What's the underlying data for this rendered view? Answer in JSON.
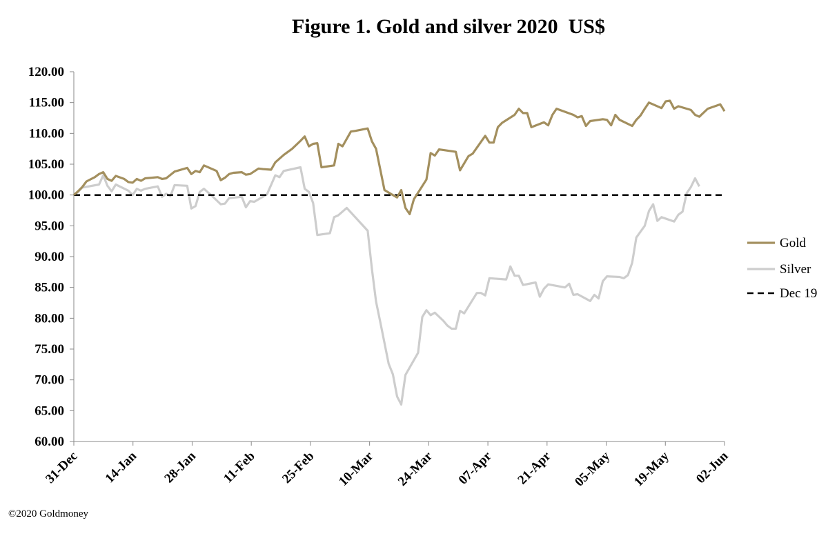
{
  "chart_data": {
    "type": "line",
    "title": "Figure 1. Gold and silver 2020  US$",
    "ylim": [
      60,
      120
    ],
    "y_ticks": [
      "120.00",
      "115.00",
      "110.00",
      "105.00",
      "100.00",
      "95.00",
      "90.00",
      "85.00",
      "80.00",
      "75.00",
      "70.00",
      "65.00",
      "60.00"
    ],
    "x_ticks": [
      "31-Dec",
      "14-Jan",
      "28-Jan",
      "11-Feb",
      "25-Feb",
      "10-Mar",
      "24-Mar",
      "07-Apr",
      "21-Apr",
      "05-May",
      "19-May",
      "02-Jun"
    ],
    "grid": false,
    "legend_position": "right",
    "series": [
      {
        "name": "Gold",
        "color": "#a38f5e",
        "style": "solid",
        "points": [
          [
            0,
            100.0
          ],
          [
            1,
            100.6
          ],
          [
            2,
            101.3
          ],
          [
            3,
            102.2
          ],
          [
            5,
            102.9
          ],
          [
            6,
            103.4
          ],
          [
            7,
            103.7
          ],
          [
            8,
            102.6
          ],
          [
            9,
            102.3
          ],
          [
            10,
            103.1
          ],
          [
            12,
            102.6
          ],
          [
            13,
            102.1
          ],
          [
            14,
            102.0
          ],
          [
            15,
            102.6
          ],
          [
            16,
            102.3
          ],
          [
            17,
            102.7
          ],
          [
            20,
            102.9
          ],
          [
            21,
            102.6
          ],
          [
            22,
            102.7
          ],
          [
            24,
            103.8
          ],
          [
            27,
            104.4
          ],
          [
            28,
            103.4
          ],
          [
            29,
            103.9
          ],
          [
            30,
            103.7
          ],
          [
            31,
            104.8
          ],
          [
            34,
            103.9
          ],
          [
            35,
            102.4
          ],
          [
            36,
            102.8
          ],
          [
            37,
            103.4
          ],
          [
            38,
            103.6
          ],
          [
            40,
            103.7
          ],
          [
            41,
            103.3
          ],
          [
            42,
            103.4
          ],
          [
            44,
            104.3
          ],
          [
            45,
            104.2
          ],
          [
            47,
            104.1
          ],
          [
            48,
            105.3
          ],
          [
            50,
            106.5
          ],
          [
            52,
            107.5
          ],
          [
            54,
            108.8
          ],
          [
            55,
            109.5
          ],
          [
            56,
            107.9
          ],
          [
            57,
            108.3
          ],
          [
            58,
            108.4
          ],
          [
            59,
            104.5
          ],
          [
            62,
            104.8
          ],
          [
            63,
            108.3
          ],
          [
            64,
            107.9
          ],
          [
            66,
            110.3
          ],
          [
            67,
            110.4
          ],
          [
            70,
            110.8
          ],
          [
            71,
            108.7
          ],
          [
            72,
            107.5
          ],
          [
            74,
            100.8
          ],
          [
            76,
            100.0
          ],
          [
            77,
            99.6
          ],
          [
            78,
            100.8
          ],
          [
            79,
            97.9
          ],
          [
            80,
            96.9
          ],
          [
            81,
            99.3
          ],
          [
            84,
            102.5
          ],
          [
            85,
            106.8
          ],
          [
            86,
            106.4
          ],
          [
            87,
            107.4
          ],
          [
            91,
            107.0
          ],
          [
            92,
            104.0
          ],
          [
            94,
            106.3
          ],
          [
            95,
            106.7
          ],
          [
            98,
            109.6
          ],
          [
            99,
            108.5
          ],
          [
            100,
            108.5
          ],
          [
            101,
            111.0
          ],
          [
            102,
            111.7
          ],
          [
            105,
            113.0
          ],
          [
            106,
            114.0
          ],
          [
            107,
            113.3
          ],
          [
            108,
            113.3
          ],
          [
            109,
            111.0
          ],
          [
            112,
            111.8
          ],
          [
            113,
            111.3
          ],
          [
            114,
            113.0
          ],
          [
            115,
            114.0
          ],
          [
            119,
            113.0
          ],
          [
            120,
            112.6
          ],
          [
            121,
            112.8
          ],
          [
            122,
            111.2
          ],
          [
            123,
            112.0
          ],
          [
            126,
            112.3
          ],
          [
            127,
            112.2
          ],
          [
            128,
            111.3
          ],
          [
            129,
            113.0
          ],
          [
            130,
            112.2
          ],
          [
            133,
            111.2
          ],
          [
            134,
            112.2
          ],
          [
            135,
            112.9
          ],
          [
            136,
            114.0
          ],
          [
            137,
            115.0
          ],
          [
            140,
            114.1
          ],
          [
            141,
            115.2
          ],
          [
            142,
            115.3
          ],
          [
            143,
            114.0
          ],
          [
            144,
            114.4
          ],
          [
            147,
            113.8
          ],
          [
            148,
            113.0
          ],
          [
            149,
            112.7
          ],
          [
            151,
            114.0
          ],
          [
            154,
            114.7
          ],
          [
            155,
            113.6
          ]
        ]
      },
      {
        "name": "Silver",
        "color": "#cdcdcd",
        "style": "solid",
        "points": [
          [
            0,
            100.0
          ],
          [
            1,
            100.5
          ],
          [
            2,
            101.2
          ],
          [
            6,
            101.7
          ],
          [
            7,
            103.2
          ],
          [
            8,
            101.5
          ],
          [
            9,
            100.6
          ],
          [
            10,
            101.7
          ],
          [
            13,
            100.7
          ],
          [
            14,
            100.0
          ],
          [
            15,
            101.0
          ],
          [
            16,
            100.7
          ],
          [
            17,
            101.0
          ],
          [
            20,
            101.4
          ],
          [
            21,
            99.7
          ],
          [
            22,
            100.2
          ],
          [
            23,
            99.8
          ],
          [
            24,
            101.6
          ],
          [
            27,
            101.5
          ],
          [
            28,
            97.8
          ],
          [
            29,
            98.2
          ],
          [
            30,
            100.5
          ],
          [
            31,
            101.0
          ],
          [
            33,
            99.8
          ],
          [
            35,
            98.5
          ],
          [
            36,
            98.6
          ],
          [
            37,
            99.5
          ],
          [
            40,
            99.7
          ],
          [
            41,
            98.0
          ],
          [
            42,
            99.0
          ],
          [
            43,
            98.9
          ],
          [
            44,
            99.3
          ],
          [
            46,
            100.1
          ],
          [
            48,
            103.2
          ],
          [
            49,
            102.9
          ],
          [
            50,
            103.9
          ],
          [
            54,
            104.5
          ],
          [
            55,
            101.0
          ],
          [
            56,
            100.5
          ],
          [
            57,
            98.7
          ],
          [
            58,
            93.5
          ],
          [
            61,
            93.8
          ],
          [
            62,
            96.4
          ],
          [
            63,
            96.7
          ],
          [
            65,
            97.9
          ],
          [
            70,
            94.2
          ],
          [
            71,
            88.0
          ],
          [
            72,
            82.7
          ],
          [
            73,
            79.4
          ],
          [
            75,
            72.6
          ],
          [
            76,
            70.9
          ],
          [
            77,
            67.3
          ],
          [
            78,
            66.0
          ],
          [
            79,
            70.8
          ],
          [
            82,
            74.4
          ],
          [
            83,
            80.2
          ],
          [
            84,
            81.3
          ],
          [
            85,
            80.5
          ],
          [
            86,
            80.9
          ],
          [
            88,
            79.6
          ],
          [
            89,
            78.8
          ],
          [
            90,
            78.3
          ],
          [
            91,
            78.3
          ],
          [
            92,
            81.2
          ],
          [
            93,
            80.8
          ],
          [
            96,
            84.1
          ],
          [
            97,
            84.1
          ],
          [
            98,
            83.7
          ],
          [
            99,
            86.5
          ],
          [
            103,
            86.3
          ],
          [
            104,
            88.4
          ],
          [
            105,
            86.9
          ],
          [
            106,
            86.9
          ],
          [
            107,
            85.4
          ],
          [
            110,
            85.8
          ],
          [
            111,
            83.5
          ],
          [
            112,
            84.8
          ],
          [
            113,
            85.5
          ],
          [
            117,
            85.0
          ],
          [
            118,
            85.6
          ],
          [
            119,
            83.8
          ],
          [
            120,
            83.9
          ],
          [
            123,
            82.8
          ],
          [
            124,
            83.8
          ],
          [
            125,
            83.2
          ],
          [
            126,
            86.0
          ],
          [
            127,
            86.8
          ],
          [
            130,
            86.7
          ],
          [
            131,
            86.5
          ],
          [
            132,
            87.0
          ],
          [
            133,
            89.0
          ],
          [
            134,
            93.1
          ],
          [
            136,
            95.0
          ],
          [
            137,
            97.4
          ],
          [
            138,
            98.5
          ],
          [
            139,
            95.8
          ],
          [
            140,
            96.4
          ],
          [
            143,
            95.7
          ],
          [
            144,
            96.8
          ],
          [
            145,
            97.3
          ],
          [
            146,
            100.3
          ],
          [
            147,
            101.3
          ],
          [
            148,
            102.7
          ],
          [
            149,
            101.4
          ]
        ]
      },
      {
        "name": "Dec 19",
        "color": "#000000",
        "style": "dashed",
        "points": [
          [
            0,
            100.0
          ],
          [
            155,
            100.0
          ]
        ]
      }
    ]
  },
  "copyright": "©2020 Goldmoney"
}
